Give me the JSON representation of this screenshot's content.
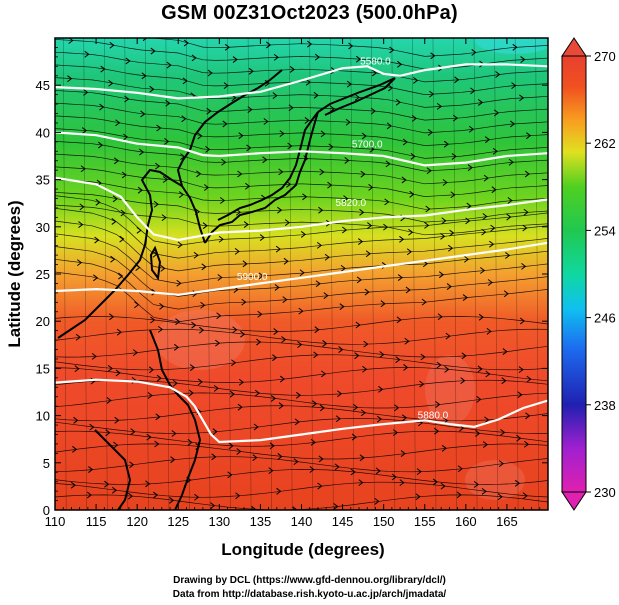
{
  "title": "GSM 00Z31Oct2023 (500.0hPa)",
  "credits": {
    "line1": "Drawing by DCL (https://www.gfd-dennou.org/library/dcl/)",
    "line2": "Data from http://database.rish.kyoto-u.ac.jp/arch/jmadata/"
  },
  "chart_data": {
    "type": "heatmap",
    "title": "GSM 00Z31Oct2023 (500.0hPa)",
    "xlabel": "Longitude (degrees)",
    "ylabel": "Latitude  (degrees)",
    "xlim": [
      110,
      170
    ],
    "ylim": [
      0,
      50
    ],
    "x_ticks": [
      "110",
      "115",
      "120",
      "125",
      "130",
      "135",
      "140",
      "145",
      "150",
      "155",
      "160",
      "165"
    ],
    "x_tick_values": [
      110,
      115,
      120,
      125,
      130,
      135,
      140,
      145,
      150,
      155,
      160,
      165
    ],
    "y_ticks": [
      "0",
      "5",
      "10",
      "15",
      "20",
      "25",
      "30",
      "35",
      "40",
      "45"
    ],
    "y_tick_values": [
      0,
      5,
      10,
      15,
      20,
      25,
      30,
      35,
      40,
      45
    ],
    "colorbar": {
      "range": [
        230,
        270
      ],
      "tick_labels": [
        "230",
        "238",
        "246",
        "254",
        "262",
        "270"
      ],
      "tick_values": [
        230,
        238,
        246,
        254,
        262,
        270
      ]
    },
    "contours": [
      {
        "label": "5880.0",
        "value": 5880,
        "points": [
          [
            110,
            13.5
          ],
          [
            115,
            13.8
          ],
          [
            120,
            13.6
          ],
          [
            124,
            13
          ],
          [
            126,
            12
          ],
          [
            127,
            11
          ],
          [
            128,
            9.5
          ],
          [
            129,
            8
          ],
          [
            130,
            7.2
          ],
          [
            135,
            7.4
          ],
          [
            140,
            8
          ],
          [
            145,
            8.6
          ],
          [
            150,
            9.1
          ],
          [
            155,
            9.5
          ],
          [
            158,
            9.1
          ],
          [
            161,
            8.8
          ],
          [
            164,
            9.6
          ],
          [
            167,
            10.8
          ],
          [
            170,
            11.6
          ]
        ]
      },
      {
        "label": "5900.0",
        "value": 5900,
        "points": [
          [
            110,
            23.2
          ],
          [
            115,
            23.4
          ],
          [
            120,
            23.2
          ],
          [
            125,
            22.8
          ],
          [
            130,
            23.4
          ],
          [
            135,
            24
          ],
          [
            140,
            24.6
          ],
          [
            145,
            25.2
          ],
          [
            150,
            25.8
          ],
          [
            155,
            26.4
          ],
          [
            160,
            27
          ],
          [
            165,
            27.6
          ],
          [
            170,
            28.3
          ]
        ]
      },
      {
        "label": "5820.0",
        "value": 5820,
        "points": [
          [
            110,
            35.2
          ],
          [
            115,
            34.5
          ],
          [
            118,
            33.2
          ],
          [
            120,
            31
          ],
          [
            122,
            29.2
          ],
          [
            125,
            28.6
          ],
          [
            130,
            29.4
          ],
          [
            135,
            29.6
          ],
          [
            140,
            30
          ],
          [
            145,
            30.6
          ],
          [
            150,
            31
          ],
          [
            155,
            31.2
          ],
          [
            160,
            31.8
          ],
          [
            165,
            32.3
          ],
          [
            170,
            32.9
          ]
        ]
      },
      {
        "label": "5700.0",
        "value": 5700,
        "points": [
          [
            110,
            40
          ],
          [
            115,
            39.7
          ],
          [
            120,
            38.8
          ],
          [
            125,
            38.4
          ],
          [
            128,
            37.6
          ],
          [
            130,
            37.5
          ],
          [
            135,
            37.8
          ],
          [
            140,
            38
          ],
          [
            145,
            37.8
          ],
          [
            150,
            37.5
          ],
          [
            155,
            36.5
          ],
          [
            160,
            36.8
          ],
          [
            165,
            37.5
          ],
          [
            170,
            37.8
          ]
        ]
      },
      {
        "label": "5580.0",
        "value": 5580,
        "points": [
          [
            110,
            44.8
          ],
          [
            115,
            44.6
          ],
          [
            120,
            44.2
          ],
          [
            125,
            43.6
          ],
          [
            130,
            43.8
          ],
          [
            135,
            44.3
          ],
          [
            140,
            45.5
          ],
          [
            145,
            46.8
          ],
          [
            148,
            47
          ],
          [
            150,
            46.2
          ],
          [
            152,
            46
          ],
          [
            155,
            46.6
          ],
          [
            160,
            47.2
          ],
          [
            165,
            47.2
          ],
          [
            170,
            47
          ]
        ]
      }
    ]
  }
}
